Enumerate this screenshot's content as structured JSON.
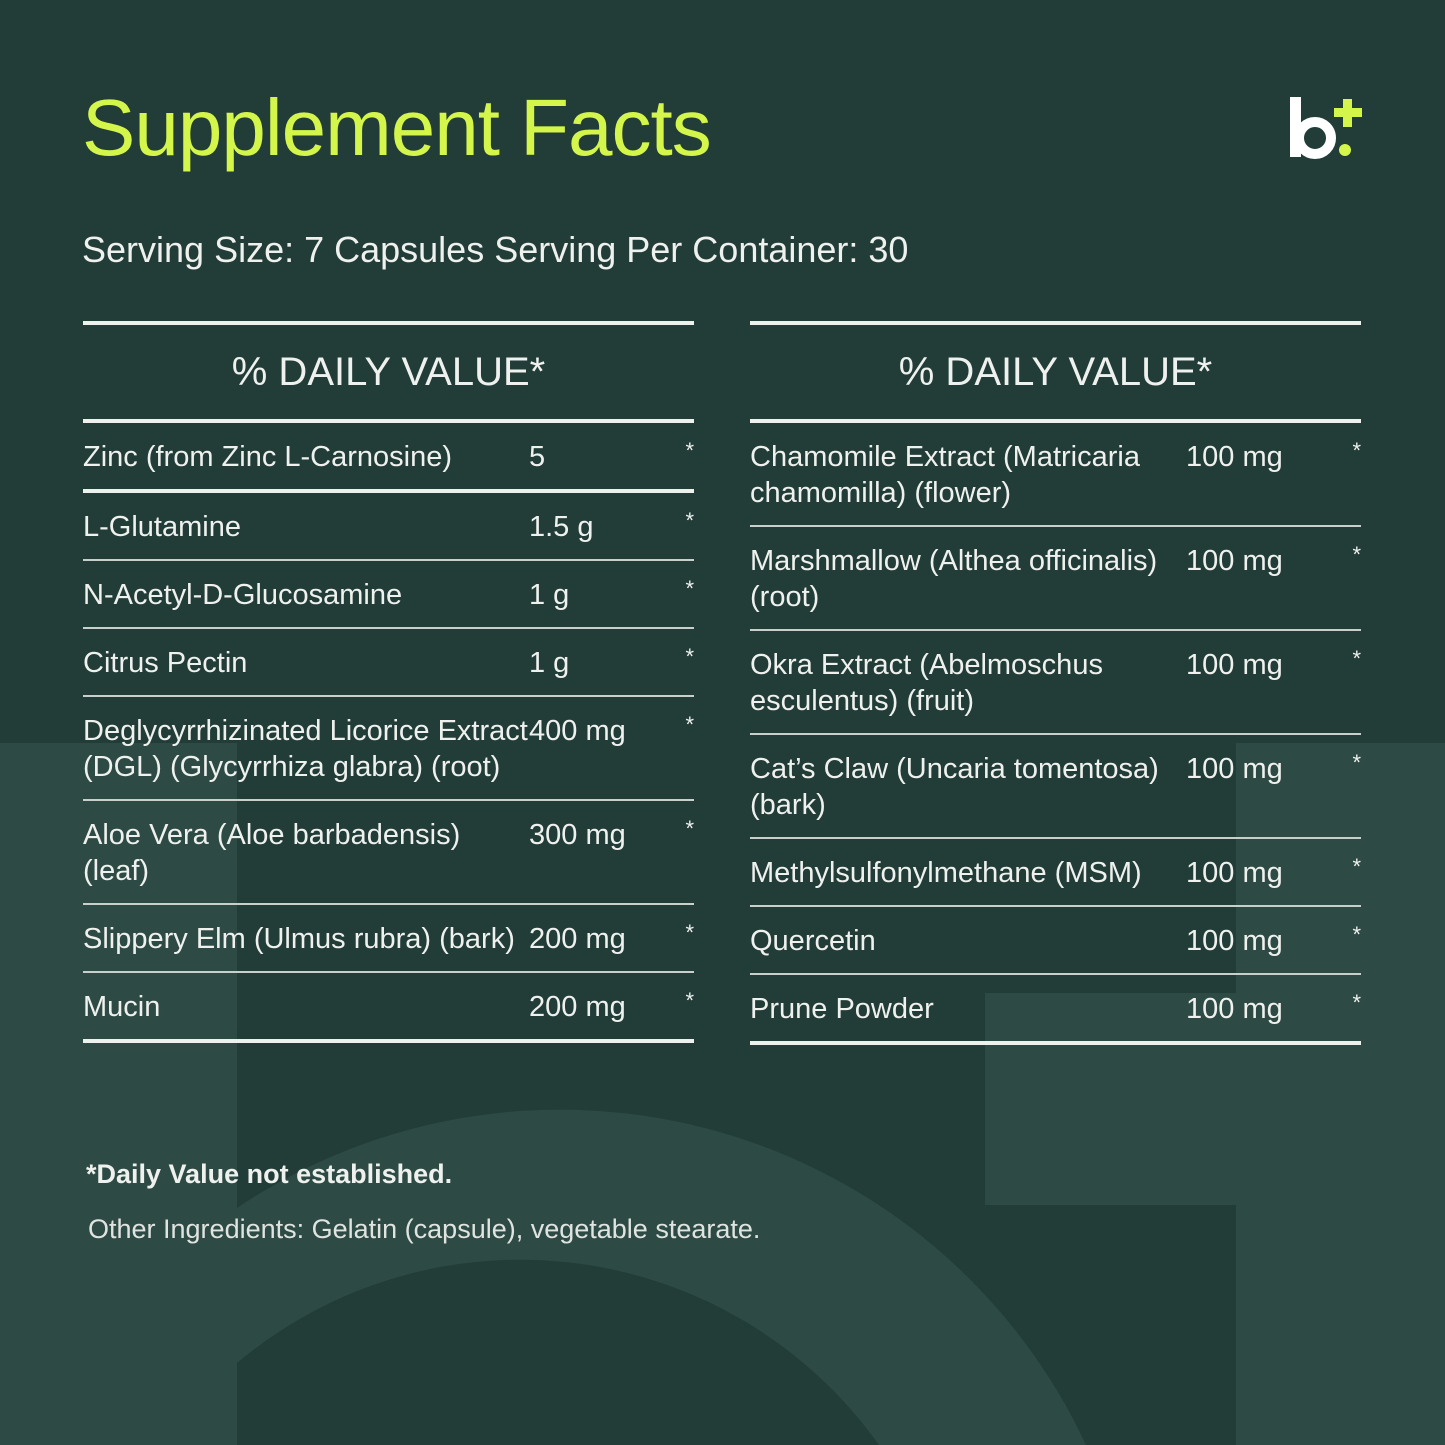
{
  "title": "Supplement Facts",
  "brand_logo": "b+",
  "colors": {
    "background": "#223c38",
    "background_shape": "#2e4a44",
    "accent": "#d4f64a",
    "text": "#eef1ee"
  },
  "serving": "Serving Size: 7 Capsules Serving Per Container: 30",
  "left_table": {
    "header": "% DAILY VALUE*",
    "rows": [
      {
        "name": "Zinc (from Zinc L-Carnosine)",
        "amount": "5",
        "dv": "*"
      },
      {
        "name": "L-Glutamine",
        "amount": "1.5 g",
        "dv": "*"
      },
      {
        "name": "N-Acetyl-D-Glucosamine",
        "amount": "1 g",
        "dv": "*"
      },
      {
        "name": "Citrus Pectin",
        "amount": "1 g",
        "dv": "*"
      },
      {
        "name": "Deglycyrrhizinated Licorice Extract (DGL) (Glycyrrhiza glabra) (root)",
        "amount": "400 mg",
        "dv": "*"
      },
      {
        "name": "Aloe Vera (Aloe barbadensis) (leaf)",
        "amount": "300 mg",
        "dv": "*"
      },
      {
        "name": "Slippery Elm (Ulmus rubra) (bark)",
        "amount": "200 mg",
        "dv": "*"
      },
      {
        "name": "Mucin",
        "amount": "200 mg",
        "dv": "*"
      }
    ]
  },
  "right_table": {
    "header": "% DAILY VALUE*",
    "rows": [
      {
        "name": "Chamomile Extract (Matricaria chamomilla) (flower)",
        "amount": "100 mg",
        "dv": "*"
      },
      {
        "name": "Marshmallow (Althea officinalis) (root)",
        "amount": "100 mg",
        "dv": "*"
      },
      {
        "name": "Okra Extract (Abelmoschus esculentus) (fruit)",
        "amount": "100 mg",
        "dv": "*"
      },
      {
        "name": "Cat’s Claw (Uncaria tomentosa) (bark)",
        "amount": "100 mg",
        "dv": "*"
      },
      {
        "name": "Methylsulfonylmethane (MSM)",
        "amount": "100 mg",
        "dv": "*"
      },
      {
        "name": "Quercetin",
        "amount": "100 mg",
        "dv": "*"
      },
      {
        "name": "Prune Powder",
        "amount": "100 mg",
        "dv": "*"
      }
    ]
  },
  "footnote": "*Daily Value not established.",
  "other_ingredients": "Other Ingredients: Gelatin (capsule), vegetable stearate."
}
